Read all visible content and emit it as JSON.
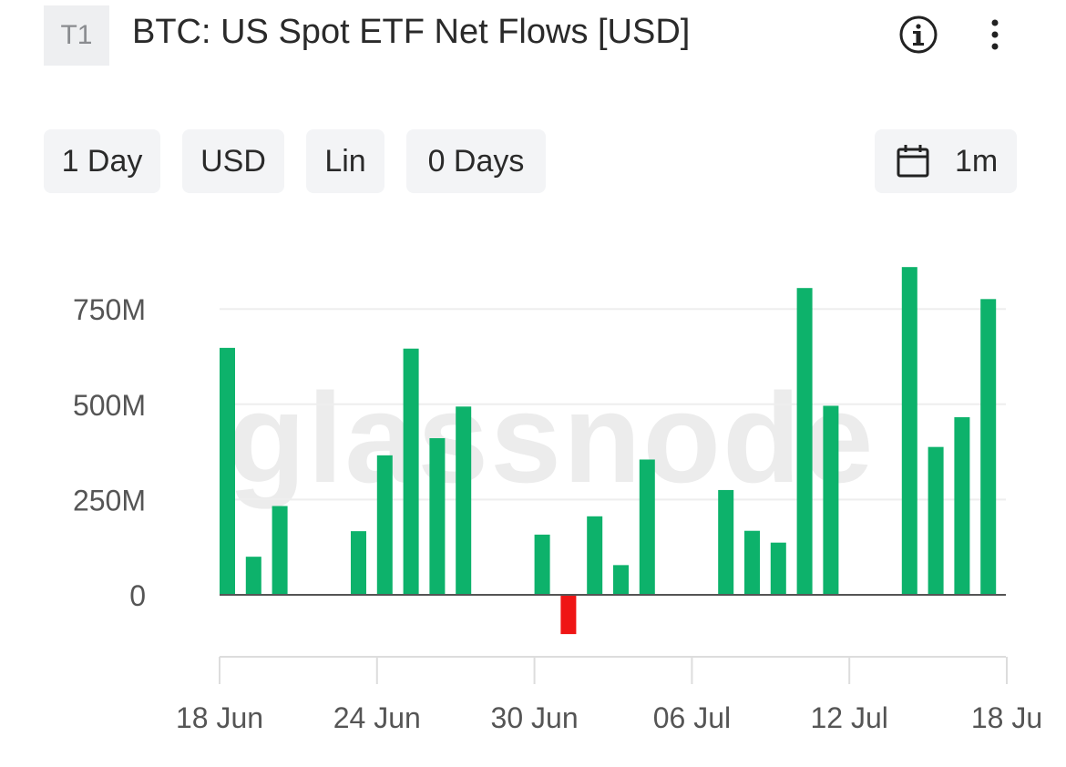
{
  "header": {
    "badge": "T1",
    "title": "BTC: US Spot ETF Net Flows [USD]",
    "info_icon": "info-circle-icon",
    "more_icon": "vertical-ellipsis-icon"
  },
  "controls": {
    "interval": "1 Day",
    "currency": "USD",
    "scale": "Lin",
    "moving_average": "0 Days",
    "range_icon": "calendar-icon",
    "range": "1m"
  },
  "watermark": "glassnode",
  "colors": {
    "positive": "#0db26b",
    "negative": "#ef1515",
    "axis": "#555555",
    "grid": "#eeeeee"
  },
  "chart_data": {
    "type": "bar",
    "title": "BTC: US Spot ETF Net Flows [USD]",
    "xlabel": "",
    "ylabel": "",
    "ylim": [
      -150,
      900
    ],
    "y_ticks": [
      "0",
      "250M",
      "500M",
      "750M"
    ],
    "y_tick_values": [
      0,
      250,
      500,
      750
    ],
    "x_ticks": [
      "18 Jun",
      "24 Jun",
      "30 Jun",
      "06 Jul",
      "12 Jul",
      "18 Ju"
    ],
    "x_tick_index": [
      0,
      6,
      12,
      18,
      24,
      30
    ],
    "grid": true,
    "unit": "USD millions",
    "categories": [
      "18 Jun",
      "19 Jun",
      "20 Jun",
      "21 Jun",
      "22 Jun",
      "23 Jun",
      "24 Jun",
      "25 Jun",
      "26 Jun",
      "27 Jun",
      "28 Jun",
      "29 Jun",
      "30 Jun",
      "01 Jul",
      "02 Jul",
      "03 Jul",
      "04 Jul",
      "05 Jul",
      "06 Jul",
      "07 Jul",
      "08 Jul",
      "09 Jul",
      "10 Jul",
      "11 Jul",
      "12 Jul",
      "13 Jul",
      "14 Jul",
      "15 Jul",
      "16 Jul",
      "17 Jul",
      "18 Jul"
    ],
    "values": [
      648,
      100,
      233,
      0,
      0,
      167,
      366,
      646,
      411,
      494,
      0,
      0,
      158,
      -103,
      206,
      78,
      355,
      0,
      0,
      275,
      168,
      137,
      805,
      496,
      0,
      0,
      860,
      388,
      466,
      776,
      0
    ]
  }
}
